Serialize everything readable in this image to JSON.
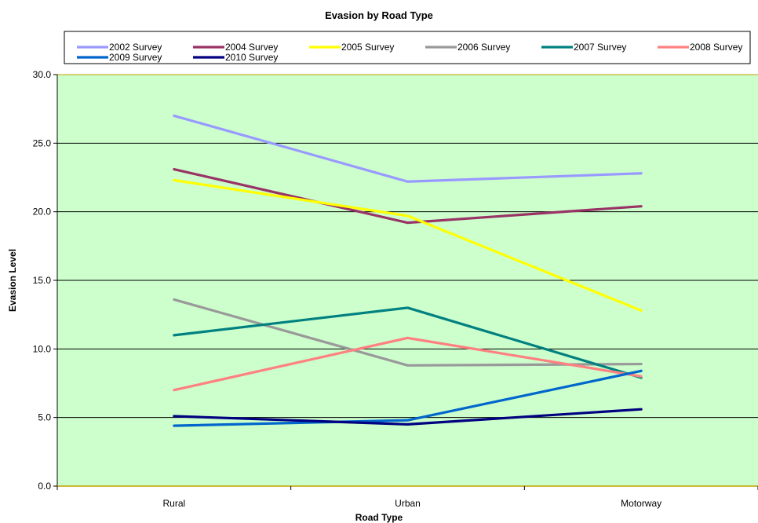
{
  "chart_data": {
    "type": "line",
    "title": "Evasion by Road Type",
    "xlabel": "Road Type",
    "ylabel": "Evasion Level",
    "categories": [
      "Rural",
      "Urban",
      "Motorway"
    ],
    "ylim": [
      0,
      30
    ],
    "yticks": [
      "0.0",
      "5.0",
      "10.0",
      "15.0",
      "20.0",
      "25.0",
      "30.0"
    ],
    "grid": true,
    "legend_position": "top",
    "plot_background": "#ccffcc",
    "series": [
      {
        "name": "2002 Survey",
        "color": "#9999ff",
        "values": [
          27.0,
          22.2,
          22.8
        ]
      },
      {
        "name": "2004 Survey",
        "color": "#993366",
        "values": [
          23.1,
          19.2,
          20.4
        ]
      },
      {
        "name": "2005 Survey",
        "color": "#ffff00",
        "values": [
          22.3,
          19.7,
          12.8
        ]
      },
      {
        "name": "2006 Survey",
        "color": "#999999",
        "values": [
          13.6,
          8.8,
          8.9
        ]
      },
      {
        "name": "2007 Survey",
        "color": "#008080",
        "values": [
          11.0,
          13.0,
          7.9
        ]
      },
      {
        "name": "2008 Survey",
        "color": "#ff8080",
        "values": [
          7.0,
          10.8,
          8.0
        ]
      },
      {
        "name": "2009 Survey",
        "color": "#0066cc",
        "values": [
          4.4,
          4.8,
          8.4
        ]
      },
      {
        "name": "2010 Survey",
        "color": "#000080",
        "values": [
          5.1,
          4.5,
          5.6
        ]
      }
    ]
  }
}
